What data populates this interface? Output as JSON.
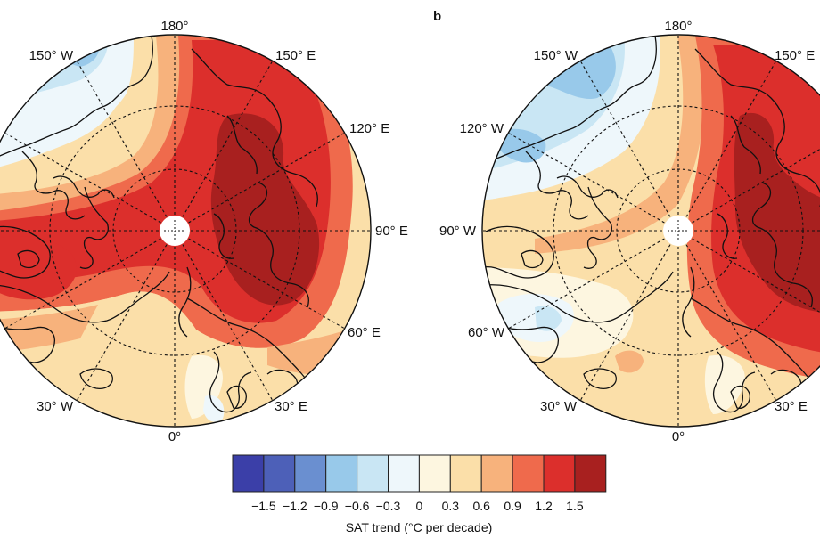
{
  "figure": {
    "panel_b_label": "b",
    "colorbar": {
      "title": "SAT trend (°C per decade)",
      "colors": [
        "#3b3fa8",
        "#4d60b8",
        "#6a8fd0",
        "#98c9ea",
        "#c9e6f4",
        "#eef7fb",
        "#fdf6e0",
        "#fbdfa9",
        "#f7b27c",
        "#ef6a4c",
        "#dc2f2c",
        "#a8201f"
      ],
      "tick_labels": [
        "−1.5",
        "−1.2",
        "−0.9",
        "−0.6",
        "−0.3",
        "0",
        "0.3",
        "0.6",
        "0.9",
        "1.2",
        "1.5"
      ]
    },
    "maps": [
      {
        "id": "a",
        "longitude_labels": {
          "top": "180°",
          "nne": "150° E",
          "ene": "120° E",
          "east": "90° E",
          "ese": "60° E",
          "sse": "30° E",
          "bottom": "0°",
          "ssw": "30° W",
          "nnw": "150° W"
        }
      },
      {
        "id": "b",
        "longitude_labels": {
          "top": "180°",
          "nne": "150° E",
          "nnw": "150° W",
          "wnw": "120° W",
          "west": "90° W",
          "wsw": "60° W",
          "ssw": "30° W",
          "sse": "30° E",
          "bottom": "0°"
        }
      }
    ]
  }
}
